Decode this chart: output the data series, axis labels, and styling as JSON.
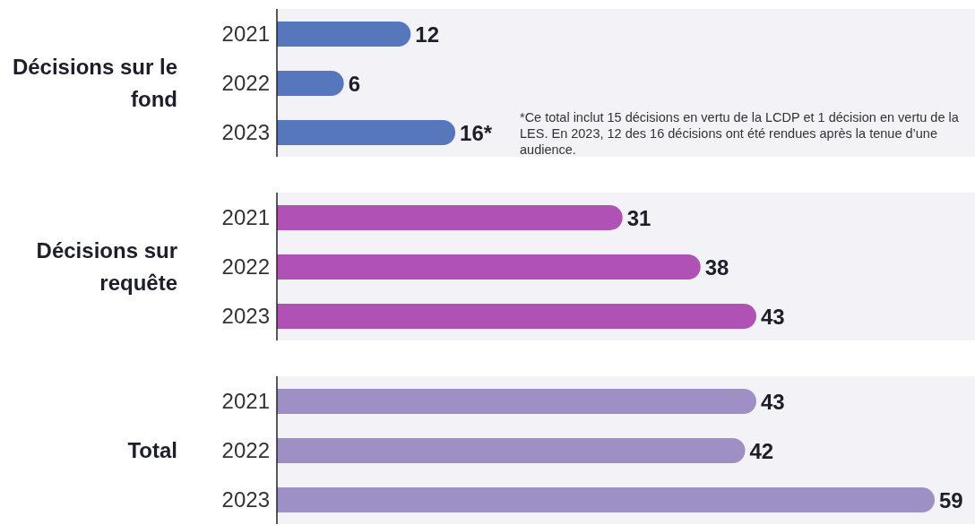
{
  "chart_data": [
    {
      "type": "bar",
      "orientation": "horizontal",
      "ylabel": "Décisions sur le fond",
      "categories": [
        "2021",
        "2022",
        "2023"
      ],
      "values": [
        12,
        6,
        16
      ],
      "color": "#5677bb",
      "value_labels": [
        "12",
        "6",
        "16*"
      ],
      "annotations": [
        "*Ce total inclut 15 décisions en vertu de la LCDP et 1 décision en vertu de la LES. En 2023, 12 des 16 décisions ont été rendues après la tenue d’une audience."
      ]
    },
    {
      "type": "bar",
      "orientation": "horizontal",
      "ylabel": "Décisions sur requête",
      "categories": [
        "2021",
        "2022",
        "2023"
      ],
      "values": [
        31,
        38,
        43
      ],
      "color": "#b052b5",
      "data_labels": true
    },
    {
      "type": "bar",
      "orientation": "horizontal",
      "ylabel": "Total",
      "categories": [
        "2021",
        "2022",
        "2023"
      ],
      "values": [
        43,
        42,
        59
      ],
      "color": "#9e90c4",
      "data_labels": true
    }
  ]
}
